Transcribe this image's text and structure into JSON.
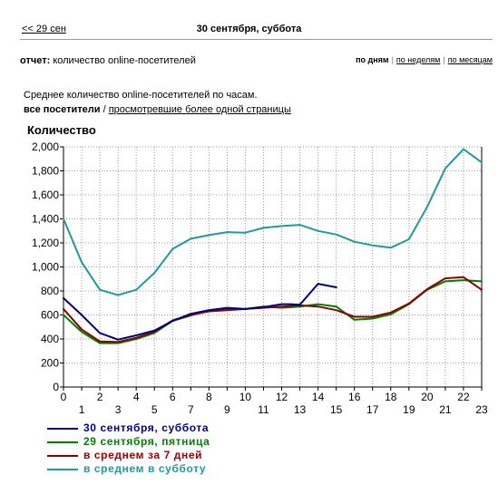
{
  "nav": {
    "prev_link": "<< 29 сен",
    "date_title": "30 сентября, суббота"
  },
  "report": {
    "label": "отчет:",
    "value": "количество online-посетителей"
  },
  "period": {
    "current": "по дням",
    "weeks": "по неделям",
    "months": "по месяцам"
  },
  "description": "Среднее количество online-посетителей по часам.",
  "filter": {
    "current": "все посетители",
    "separator": "/",
    "alt": "просмотревшие более одной страницы"
  },
  "chart_data": {
    "type": "line",
    "ylabel": "Количество",
    "ylim": [
      0,
      2000
    ],
    "yticks": [
      "0",
      "200",
      "400",
      "600",
      "800",
      "1,000",
      "1,200",
      "1,400",
      "1,600",
      "1,800",
      "2,000"
    ],
    "x": [
      0,
      1,
      2,
      3,
      4,
      5,
      6,
      7,
      8,
      9,
      10,
      11,
      12,
      13,
      14,
      15,
      16,
      17,
      18,
      19,
      20,
      21,
      22,
      23
    ],
    "grid": true,
    "series": [
      {
        "name": "30 сентября, суббота",
        "color": "#000080",
        "x": [
          0,
          1,
          2,
          3,
          4,
          5,
          6,
          7,
          8,
          9,
          10,
          11,
          12,
          12.5,
          13,
          14,
          15
        ],
        "values": [
          740,
          600,
          450,
          395,
          430,
          470,
          550,
          610,
          640,
          660,
          650,
          665,
          690,
          690,
          685,
          860,
          830
        ]
      },
      {
        "name": "29 сентября, пятница",
        "color": "#008000",
        "values": [
          600,
          460,
          365,
          365,
          400,
          450,
          550,
          595,
          640,
          650,
          650,
          670,
          660,
          670,
          690,
          670,
          560,
          570,
          605,
          690,
          810,
          880,
          890,
          880
        ]
      },
      {
        "name": "в среднем за 7 дней",
        "color": "#8b0000",
        "values": [
          650,
          480,
          380,
          375,
          410,
          460,
          555,
          600,
          630,
          640,
          650,
          660,
          670,
          680,
          670,
          640,
          585,
          585,
          620,
          695,
          815,
          905,
          915,
          810
        ]
      },
      {
        "name": "в среднем в субботу",
        "color": "#1e9aa0",
        "values": [
          1400,
          1040,
          810,
          765,
          810,
          950,
          1150,
          1235,
          1265,
          1290,
          1285,
          1325,
          1340,
          1350,
          1300,
          1270,
          1210,
          1180,
          1160,
          1230,
          1500,
          1820,
          1980,
          1870
        ]
      }
    ]
  }
}
